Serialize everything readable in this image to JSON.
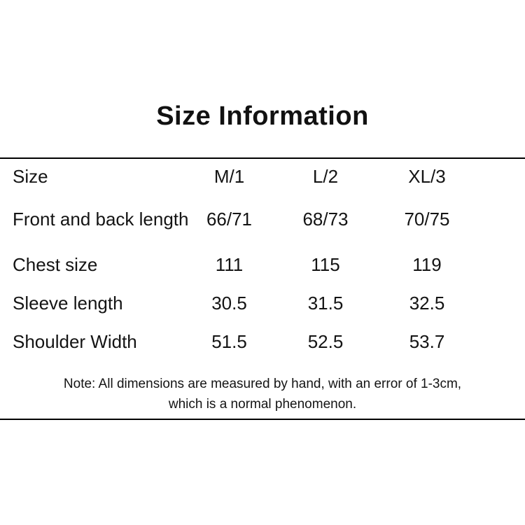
{
  "page": {
    "title": "Size Information",
    "note_line1": "Note: All dimensions are measured by hand, with an error of 1-3cm,",
    "note_line2": "which is a normal phenomenon."
  },
  "size_table": {
    "columns": [
      "Size",
      "M/1",
      "L/2",
      "XL/3"
    ],
    "rows": [
      {
        "label": "Front and back length",
        "values": [
          "66/71",
          "68/73",
          "70/75"
        ]
      },
      {
        "label": "Chest size",
        "values": [
          "111",
          "115",
          "119"
        ]
      },
      {
        "label": "Sleeve length",
        "values": [
          "30.5",
          "31.5",
          "32.5"
        ]
      },
      {
        "label": "Shoulder Width",
        "values": [
          "51.5",
          "52.5",
          "53.7"
        ]
      }
    ]
  },
  "colors": {
    "background": "#ffffff",
    "text": "#141414",
    "rule": "#000000"
  }
}
